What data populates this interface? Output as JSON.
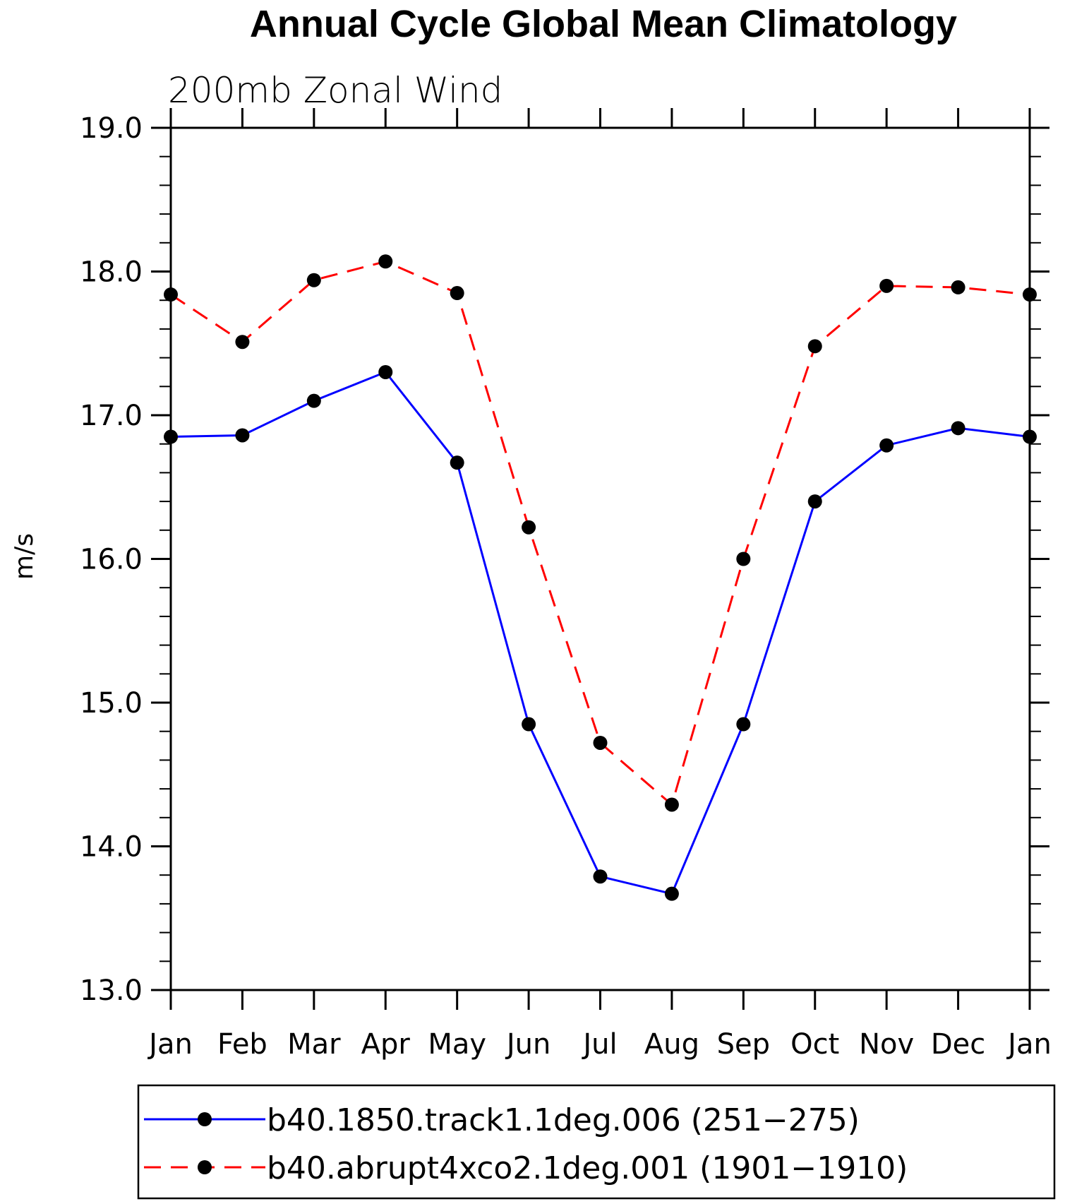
{
  "chart_data": {
    "type": "line",
    "title": "Annual Cycle Global Mean Climatology",
    "subtitle": "200mb Zonal Wind",
    "xlabel": "",
    "ylabel": "m/s",
    "categories": [
      "Jan",
      "Feb",
      "Mar",
      "Apr",
      "May",
      "Jun",
      "Jul",
      "Aug",
      "Sep",
      "Oct",
      "Nov",
      "Dec",
      "Jan"
    ],
    "ylim": [
      13.0,
      19.0
    ],
    "yticks": [
      "13.0",
      "14.0",
      "15.0",
      "16.0",
      "17.0",
      "18.0",
      "19.0"
    ],
    "grid": false,
    "legend_position": "bottom",
    "series": [
      {
        "name": "b40.1850.track1.1deg.006 (251−275)",
        "color": "#0000ff",
        "dash": "solid",
        "marker": "filled-circle",
        "values": [
          16.85,
          16.86,
          17.1,
          17.3,
          16.67,
          14.85,
          13.79,
          13.67,
          14.85,
          16.4,
          16.79,
          16.91,
          16.85
        ]
      },
      {
        "name": "b40.abrupt4xco2.1deg.001 (1901−1910)",
        "color": "#ff0000",
        "dash": "dashed",
        "marker": "filled-circle",
        "values": [
          17.84,
          17.51,
          17.94,
          18.07,
          17.85,
          16.22,
          14.72,
          14.29,
          16.0,
          17.48,
          17.9,
          17.89,
          17.84
        ]
      }
    ]
  }
}
